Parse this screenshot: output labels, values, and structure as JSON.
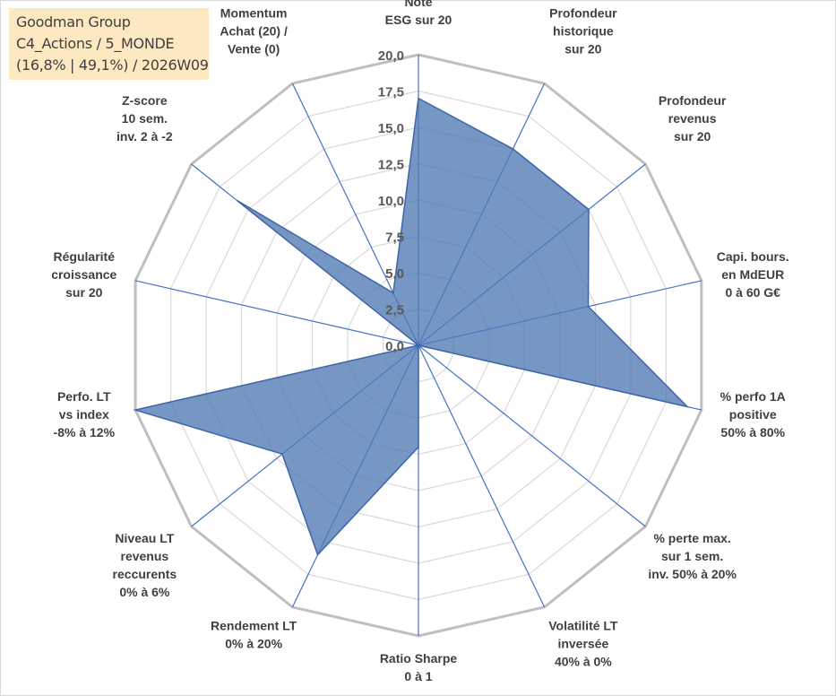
{
  "info": {
    "line1": "Goodman Group",
    "line2": "C4_Actions / 5_MONDE",
    "line3": "(16,8% | 49,1%) / 2026W09"
  },
  "colors": {
    "area": "#4f7ab3",
    "spoke": "#4472c4",
    "grid": "#d9d9d9",
    "outer": "#bfbfbf",
    "info_bg": "#fce9c2"
  },
  "chart_data": {
    "type": "radar",
    "rmin": 0,
    "rmax": 20,
    "ticks": [
      "0,0",
      "2,5",
      "5,0",
      "7,5",
      "10,0",
      "12,5",
      "15,0",
      "17,5",
      "20,0"
    ],
    "axes": [
      {
        "label": [
          "Note",
          "ESG sur 20"
        ],
        "value": 17
      },
      {
        "label": [
          "Profondeur",
          "historique",
          "sur 20"
        ],
        "value": 15
      },
      {
        "label": [
          "Profondeur",
          "revenus",
          "sur 20"
        ],
        "value": 15
      },
      {
        "label": [
          "Capi. bours.",
          "en MdEUR",
          "0 à 60 G€"
        ],
        "value": 12
      },
      {
        "label": [
          "% perfo 1A",
          "positive",
          "50% à 80%"
        ],
        "value": 19
      },
      {
        "label": [
          "% perte max.",
          "sur 1 sem.",
          "inv. 50% à 20%"
        ],
        "value": 0
      },
      {
        "label": [
          "Volatilité LT",
          "inversée",
          "40% à 0%"
        ],
        "value": 0
      },
      {
        "label": [
          "Ratio Sharpe",
          "0 à 1"
        ],
        "value": 7
      },
      {
        "label": [
          "Rendement LT",
          "0% à 20%"
        ],
        "value": 16
      },
      {
        "label": [
          "Niveau LT",
          "revenus",
          "reccurents",
          "0% à 6%"
        ],
        "value": 12
      },
      {
        "label": [
          "Perfo. LT",
          "vs index",
          "-8% à 12%"
        ],
        "value": 20
      },
      {
        "label": [
          "Régularité",
          "croissance",
          "sur 20"
        ],
        "value": 0
      },
      {
        "label": [
          "Z-score",
          "10 sem.",
          "inv. 2 à -2"
        ],
        "value": 16
      },
      {
        "label": [
          "Momentum",
          "Achat (20) /",
          "Vente (0)"
        ],
        "value": 4
      }
    ]
  }
}
